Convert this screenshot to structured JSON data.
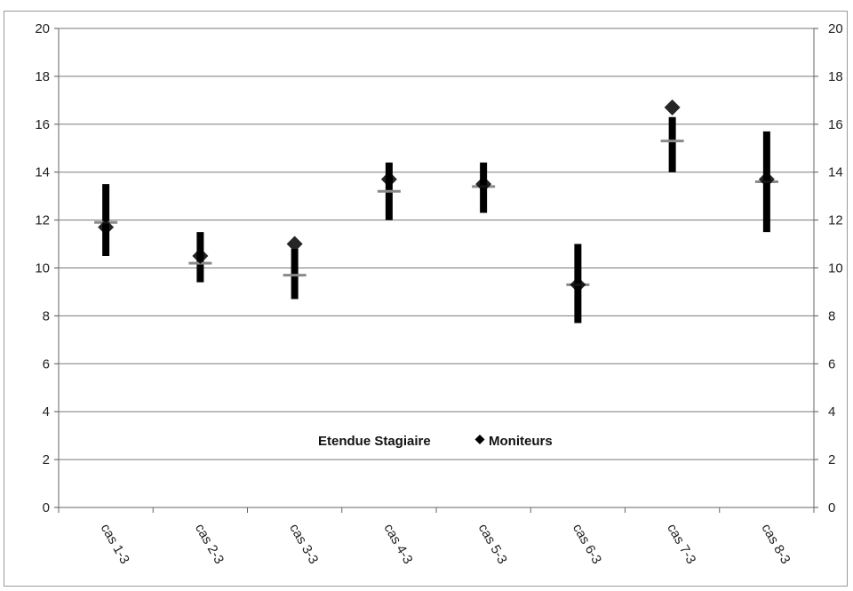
{
  "chart_data": {
    "type": "scatter",
    "categories": [
      "cas 1-3",
      "cas 2-3",
      "cas 3-3",
      "cas 4-3",
      "cas 5-3",
      "cas 6-3",
      "cas 7-3",
      "cas 8-3"
    ],
    "ylim": [
      0,
      20
    ],
    "yticks": [
      "0",
      "2",
      "4",
      "6",
      "8",
      "10",
      "12",
      "14",
      "16",
      "18",
      "20"
    ],
    "grid": true,
    "secondary_y_axis": true,
    "legend_position": "bottom-center",
    "series": [
      {
        "name": "Etendue Stagiaire",
        "kind": "range",
        "color": "#000000",
        "low": [
          10.5,
          9.4,
          8.7,
          12.0,
          12.3,
          7.7,
          14.0,
          11.5
        ],
        "high": [
          13.5,
          11.5,
          10.8,
          14.4,
          14.4,
          11.0,
          16.3,
          15.7
        ],
        "mean": [
          11.9,
          10.2,
          9.7,
          13.2,
          13.4,
          9.3,
          15.3,
          13.6
        ]
      },
      {
        "name": "Moniteurs",
        "kind": "marker",
        "marker": "diamond",
        "color": "#000000",
        "values": [
          11.7,
          10.5,
          11.0,
          13.7,
          13.5,
          9.3,
          16.7,
          13.7
        ]
      }
    ]
  }
}
